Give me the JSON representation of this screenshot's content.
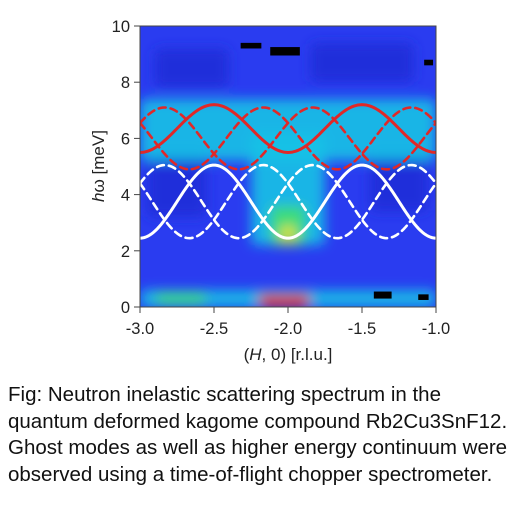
{
  "chart_data": {
    "type": "heatmap",
    "title": "",
    "xlabel_parts": [
      "(",
      "H",
      ", 0) [r.l.u.]"
    ],
    "ylabel_parts": [
      "h",
      "ω",
      " [meV]"
    ],
    "xlim": [
      -3.0,
      -1.0
    ],
    "ylim": [
      0,
      10
    ],
    "x_ticks": [
      -3.0,
      -2.5,
      -2.0,
      -1.5,
      -1.0
    ],
    "x_tick_labels": [
      "-3.0",
      "-2.5",
      "-2.0",
      "-1.5",
      "-1.0"
    ],
    "y_ticks": [
      0,
      2,
      4,
      6,
      8,
      10
    ],
    "y_tick_labels": [
      "0",
      "2",
      "4",
      "6",
      "8",
      "10"
    ],
    "grid": false,
    "colors": {
      "background": "#2a3cf0",
      "low": "#1d2ed8",
      "mid": "#16c2e6",
      "high": "#3fe070",
      "peak": "#f0e030",
      "max": "#f02818",
      "missing": "#000000",
      "model_upper": "#e02828",
      "model_lower": "#ffffff"
    },
    "intensity_regions": [
      {
        "x": [
          -2.25,
          -1.75
        ],
        "y": [
          2.2,
          6.2
        ],
        "level": 0.55
      },
      {
        "x": [
          -2.12,
          -1.88
        ],
        "y": [
          2.2,
          3.6
        ],
        "level": 0.75
      },
      {
        "x": [
          -2.05,
          -1.95
        ],
        "y": [
          2.3,
          2.9
        ],
        "level": 0.9
      },
      {
        "x": [
          -2.95,
          -2.55
        ],
        "y": [
          3.2,
          5.6
        ],
        "level": 0.35
      },
      {
        "x": [
          -1.45,
          -1.05
        ],
        "y": [
          3.4,
          5.6
        ],
        "level": 0.35
      },
      {
        "x": [
          -3.0,
          -1.0
        ],
        "y": [
          5.2,
          7.4
        ],
        "level": 0.45
      },
      {
        "x": [
          -2.9,
          -2.4
        ],
        "y": [
          7.8,
          9.2
        ],
        "level": 0.4
      },
      {
        "x": [
          -1.85,
          -1.15
        ],
        "y": [
          8.0,
          9.4
        ],
        "level": 0.35
      },
      {
        "x": [
          -3.0,
          -1.0
        ],
        "y": [
          0.0,
          0.6
        ],
        "level": 0.6
      },
      {
        "x": [
          -2.2,
          -1.85
        ],
        "y": [
          0.0,
          0.45
        ],
        "level": 1.0
      },
      {
        "x": [
          -2.9,
          -2.55
        ],
        "y": [
          0.1,
          0.5
        ],
        "level": 0.7
      }
    ],
    "missing_cells": [
      {
        "x": [
          -2.12,
          -1.92
        ],
        "y": [
          8.95,
          9.25
        ]
      },
      {
        "x": [
          -2.32,
          -2.18
        ],
        "y": [
          9.2,
          9.4
        ]
      },
      {
        "x": [
          -1.08,
          -1.02
        ],
        "y": [
          8.6,
          8.8
        ]
      },
      {
        "x": [
          -1.42,
          -1.3
        ],
        "y": [
          0.3,
          0.55
        ]
      },
      {
        "x": [
          -1.12,
          -1.05
        ],
        "y": [
          0.25,
          0.45
        ]
      }
    ],
    "series": [
      {
        "style": "solid",
        "color": "#e02828",
        "center": 6.35,
        "amplitude": 0.85,
        "period": 1.0,
        "phase": 1.0
      },
      {
        "style": "dashed",
        "color": "#e02828",
        "center": 6.0,
        "amplitude": 1.1,
        "period": 1.0,
        "phase": 0.667
      },
      {
        "style": "dashed",
        "color": "#e02828",
        "center": 6.0,
        "amplitude": 1.1,
        "period": 1.0,
        "phase": 0.333
      },
      {
        "style": "solid",
        "color": "#ffffff",
        "center": 3.75,
        "amplitude": 1.3,
        "period": 1.0,
        "phase": 0.0
      },
      {
        "style": "dashed",
        "color": "#ffffff",
        "center": 3.75,
        "amplitude": 1.3,
        "period": 1.0,
        "phase": 0.333
      },
      {
        "style": "dashed",
        "color": "#ffffff",
        "center": 3.75,
        "amplitude": 1.3,
        "period": 1.0,
        "phase": 0.667
      }
    ]
  },
  "caption": "Fig: Neutron inelastic scattering spectrum in the quantum deformed kagome compound Rb2Cu3SnF12.  Ghost modes as well as higher energy continuum were observed using a time-of-flight chopper spectrometer."
}
